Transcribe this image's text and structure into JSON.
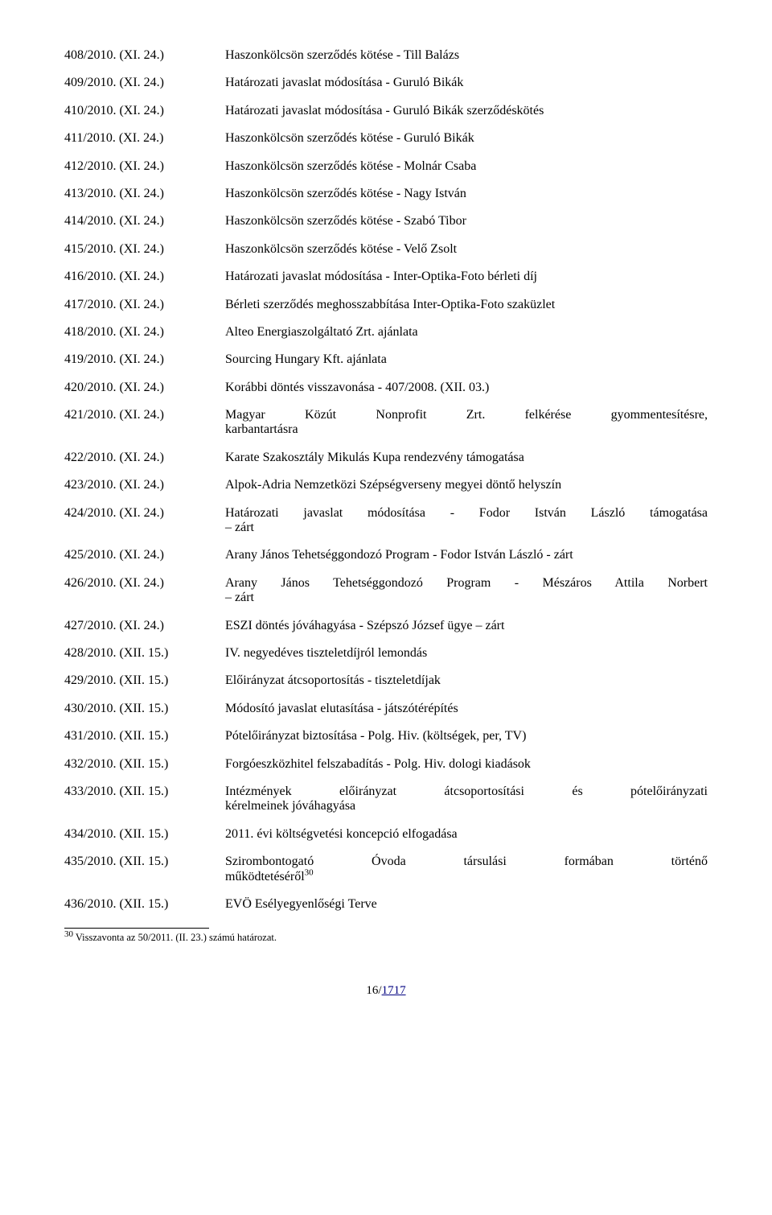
{
  "rows": [
    {
      "ref": "408/2010. (XI. 24.)",
      "desc": "Haszonkölcsön szerződés kötése - Till Balázs",
      "justify": false
    },
    {
      "ref": "409/2010. (XI. 24.)",
      "desc": "Határozati javaslat módosítása - Guruló Bikák",
      "justify": false
    },
    {
      "ref": "410/2010. (XI. 24.)",
      "desc": "Határozati javaslat módosítása - Guruló Bikák szerződéskötés",
      "justify": false
    },
    {
      "ref": "411/2010. (XI. 24.)",
      "desc": "Haszonkölcsön szerződés kötése - Guruló Bikák",
      "justify": false
    },
    {
      "ref": "412/2010. (XI. 24.)",
      "desc": "Haszonkölcsön szerződés kötése - Molnár Csaba",
      "justify": false
    },
    {
      "ref": "413/2010. (XI. 24.)",
      "desc": "Haszonkölcsön szerződés kötése - Nagy István",
      "justify": false
    },
    {
      "ref": "414/2010. (XI. 24.)",
      "desc": "Haszonkölcsön szerződés kötése - Szabó Tibor",
      "justify": false
    },
    {
      "ref": "415/2010. (XI. 24.)",
      "desc": "Haszonkölcsön szerződés kötése - Velő Zsolt",
      "justify": false
    },
    {
      "ref": "416/2010. (XI. 24.)",
      "desc": "Határozati javaslat módosítása - Inter-Optika-Foto bérleti díj",
      "justify": false
    },
    {
      "ref": "417/2010. (XI. 24.)",
      "desc": "Bérleti szerződés meghosszabbítása Inter-Optika-Foto szaküzlet",
      "justify": false
    },
    {
      "ref": "418/2010. (XI. 24.)",
      "desc": "Alteo Energiaszolgáltató Zrt. ajánlata",
      "justify": false
    },
    {
      "ref": "419/2010. (XI. 24.)",
      "desc": "Sourcing Hungary Kft. ajánlata",
      "justify": false
    },
    {
      "ref": "420/2010. (XI. 24.)",
      "desc": "Korábbi döntés visszavonása - 407/2008. (XII. 03.)",
      "justify": false
    },
    {
      "ref": "421/2010. (XI. 24.)",
      "desc": "Magyar Közút Nonprofit Zrt. felkérése gyommentesítésre, karbantartásra",
      "justify": true
    },
    {
      "ref": "422/2010. (XI. 24.)",
      "desc": "Karate Szakosztály Mikulás Kupa rendezvény támogatása",
      "justify": false
    },
    {
      "ref": "423/2010. (XI. 24.)",
      "desc": "Alpok-Adria Nemzetközi Szépségverseny megyei döntő helyszín",
      "justify": false
    },
    {
      "ref": "424/2010. (XI. 24.)",
      "desc": "Határozati javaslat módosítása - Fodor István László támogatása – zárt",
      "justify": true
    },
    {
      "ref": "425/2010. (XI. 24.)",
      "desc": "Arany János Tehetséggondozó Program - Fodor István László - zárt",
      "justify": false
    },
    {
      "ref": "426/2010. (XI. 24.)",
      "desc": "Arany János Tehetséggondozó Program - Mészáros Attila Norbert – zárt",
      "justify": true
    },
    {
      "ref": "427/2010. (XI. 24.)",
      "desc": "ESZI döntés jóváhagyása - Szépszó József ügye – zárt",
      "justify": false
    },
    {
      "ref": "428/2010. (XII. 15.)",
      "desc": "IV. negyedéves tiszteletdíjról lemondás",
      "justify": false
    },
    {
      "ref": "429/2010. (XII. 15.)",
      "desc": "Előirányzat átcsoportosítás - tiszteletdíjak",
      "justify": false
    },
    {
      "ref": "430/2010. (XII. 15.)",
      "desc": "Módosító javaslat elutasítása - játszótérépítés",
      "justify": false
    },
    {
      "ref": "431/2010. (XII. 15.)",
      "desc": "Pótelőirányzat biztosítása - Polg. Hiv. (költségek, per, TV)",
      "justify": false
    },
    {
      "ref": "432/2010. (XII. 15.)",
      "desc": "Forgóeszközhitel felszabadítás - Polg. Hiv. dologi kiadások",
      "justify": false
    },
    {
      "ref": "433/2010. (XII. 15.)",
      "desc": "Intézmények előirányzat átcsoportosítási és pótelőirányzati kérelmeinek jóváhagyása",
      "justify": true
    },
    {
      "ref": "434/2010. (XII. 15.)",
      "desc": "2011. évi költségvetési koncepció elfogadása",
      "justify": false
    },
    {
      "ref": "435/2010. (XII. 15.)",
      "desc": "Szirombontogató Óvoda társulási formában történő működtetéséről",
      "justify": true,
      "sup": "30"
    },
    {
      "ref": "436/2010. (XII. 15.)",
      "desc": "EVÖ Esélyegyenlőségi Terve",
      "justify": false
    }
  ],
  "footnote": {
    "num": "30",
    "text": " Visszavonta az 50/2011. (II. 23.) számú határozat."
  },
  "pagenum": {
    "current": "16",
    "total": "1717"
  },
  "colors": {
    "text": "#000000",
    "background": "#ffffff",
    "link": "#000080"
  },
  "font": {
    "family": "Book Antiqua / Palatino",
    "body_size_pt": 12,
    "footnote_size_pt": 9
  }
}
